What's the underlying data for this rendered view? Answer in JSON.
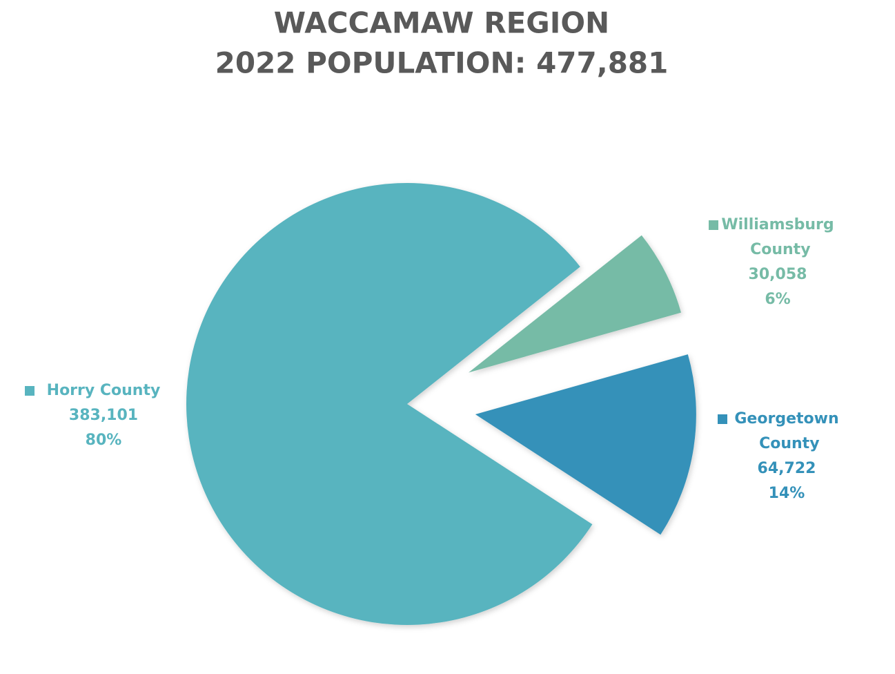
{
  "chart_data": {
    "type": "pie",
    "title": "WACCAMAW REGION",
    "subtitle": "2022 POPULATION: 477,881",
    "categories": [
      "Horry County",
      "Williamsburg County",
      "Georgetown County"
    ],
    "values": [
      383101,
      30058,
      64722
    ],
    "value_labels": [
      "383,101",
      "30,058",
      "64,722"
    ],
    "percent_labels": [
      "80%",
      "6%",
      "14%"
    ],
    "colors": [
      "#58b4bf",
      "#76bba6",
      "#3491b9"
    ]
  }
}
